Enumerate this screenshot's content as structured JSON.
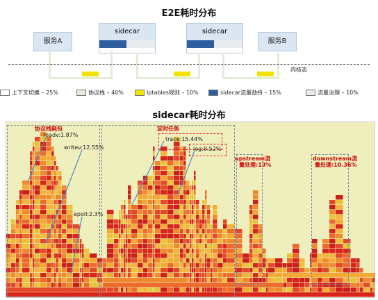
{
  "e2e_title": "E2E耗时分布",
  "service_a": "服务A",
  "service_b": "服务B",
  "sidecar1": "sidecar",
  "sidecar2": "sidecar",
  "kernel_label": "内核态",
  "legend": [
    {
      "label": "上下文切换 – 25%",
      "color": "#ffffff"
    },
    {
      "label": "协议栈 – 40%",
      "color": "#e1ecd9"
    },
    {
      "label": "Iptables规则 – 10%",
      "color": "#f2e200"
    },
    {
      "label": "sidecar流量劫持 – 15%",
      "color": "#2e5f9e"
    },
    {
      "label": "流量治理 – 10%",
      "color": "#e8ecef"
    }
  ],
  "sidecar_title": "sidecar耗时分布",
  "annotations": {
    "proto_stack": "协议栈耗包",
    "readv": "readv:1.87%",
    "writev": "writev:12.55%",
    "epoll": "epoll:2.3%",
    "timer": "定时任务",
    "trace": "trace:15.44%",
    "log": "log:9.52%",
    "upstream": "upstream流",
    "upstream_pct": "量处理:13%",
    "downstream": "downstream流",
    "downstream_pct": "量处理:10.36%"
  }
}
